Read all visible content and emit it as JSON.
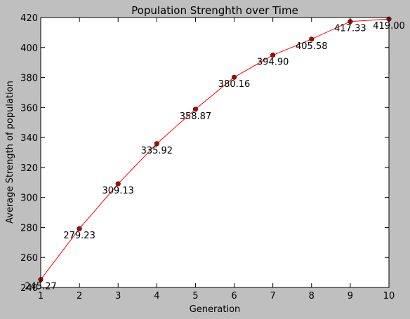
{
  "chart_data": {
    "type": "line",
    "title": "Population Strenghth over Time",
    "xlabel": "Generation",
    "ylabel": "Average Strength of population",
    "x": [
      1,
      2,
      3,
      4,
      5,
      6,
      7,
      8,
      9,
      10
    ],
    "series": [
      {
        "values": [
          245.27,
          279.23,
          309.13,
          335.92,
          358.87,
          380.16,
          394.9,
          405.58,
          417.33,
          419.0
        ]
      }
    ],
    "data_labels": [
      "245.27",
      "279.23",
      "309.13",
      "335.92",
      "358.87",
      "380.16",
      "394.90",
      "405.58",
      "417.33",
      "419.00"
    ],
    "xlim": [
      1,
      10
    ],
    "ylim": [
      240,
      420
    ],
    "x_ticks": [
      1,
      2,
      3,
      4,
      5,
      6,
      7,
      8,
      9,
      10
    ],
    "y_ticks": [
      240,
      260,
      280,
      300,
      320,
      340,
      360,
      380,
      400,
      420
    ],
    "grid": false,
    "legend": "none",
    "colors": {
      "line": "#ff0000",
      "marker": "#bf0000",
      "background": "#bfbfbf",
      "plot_area": "#ffffff"
    }
  }
}
